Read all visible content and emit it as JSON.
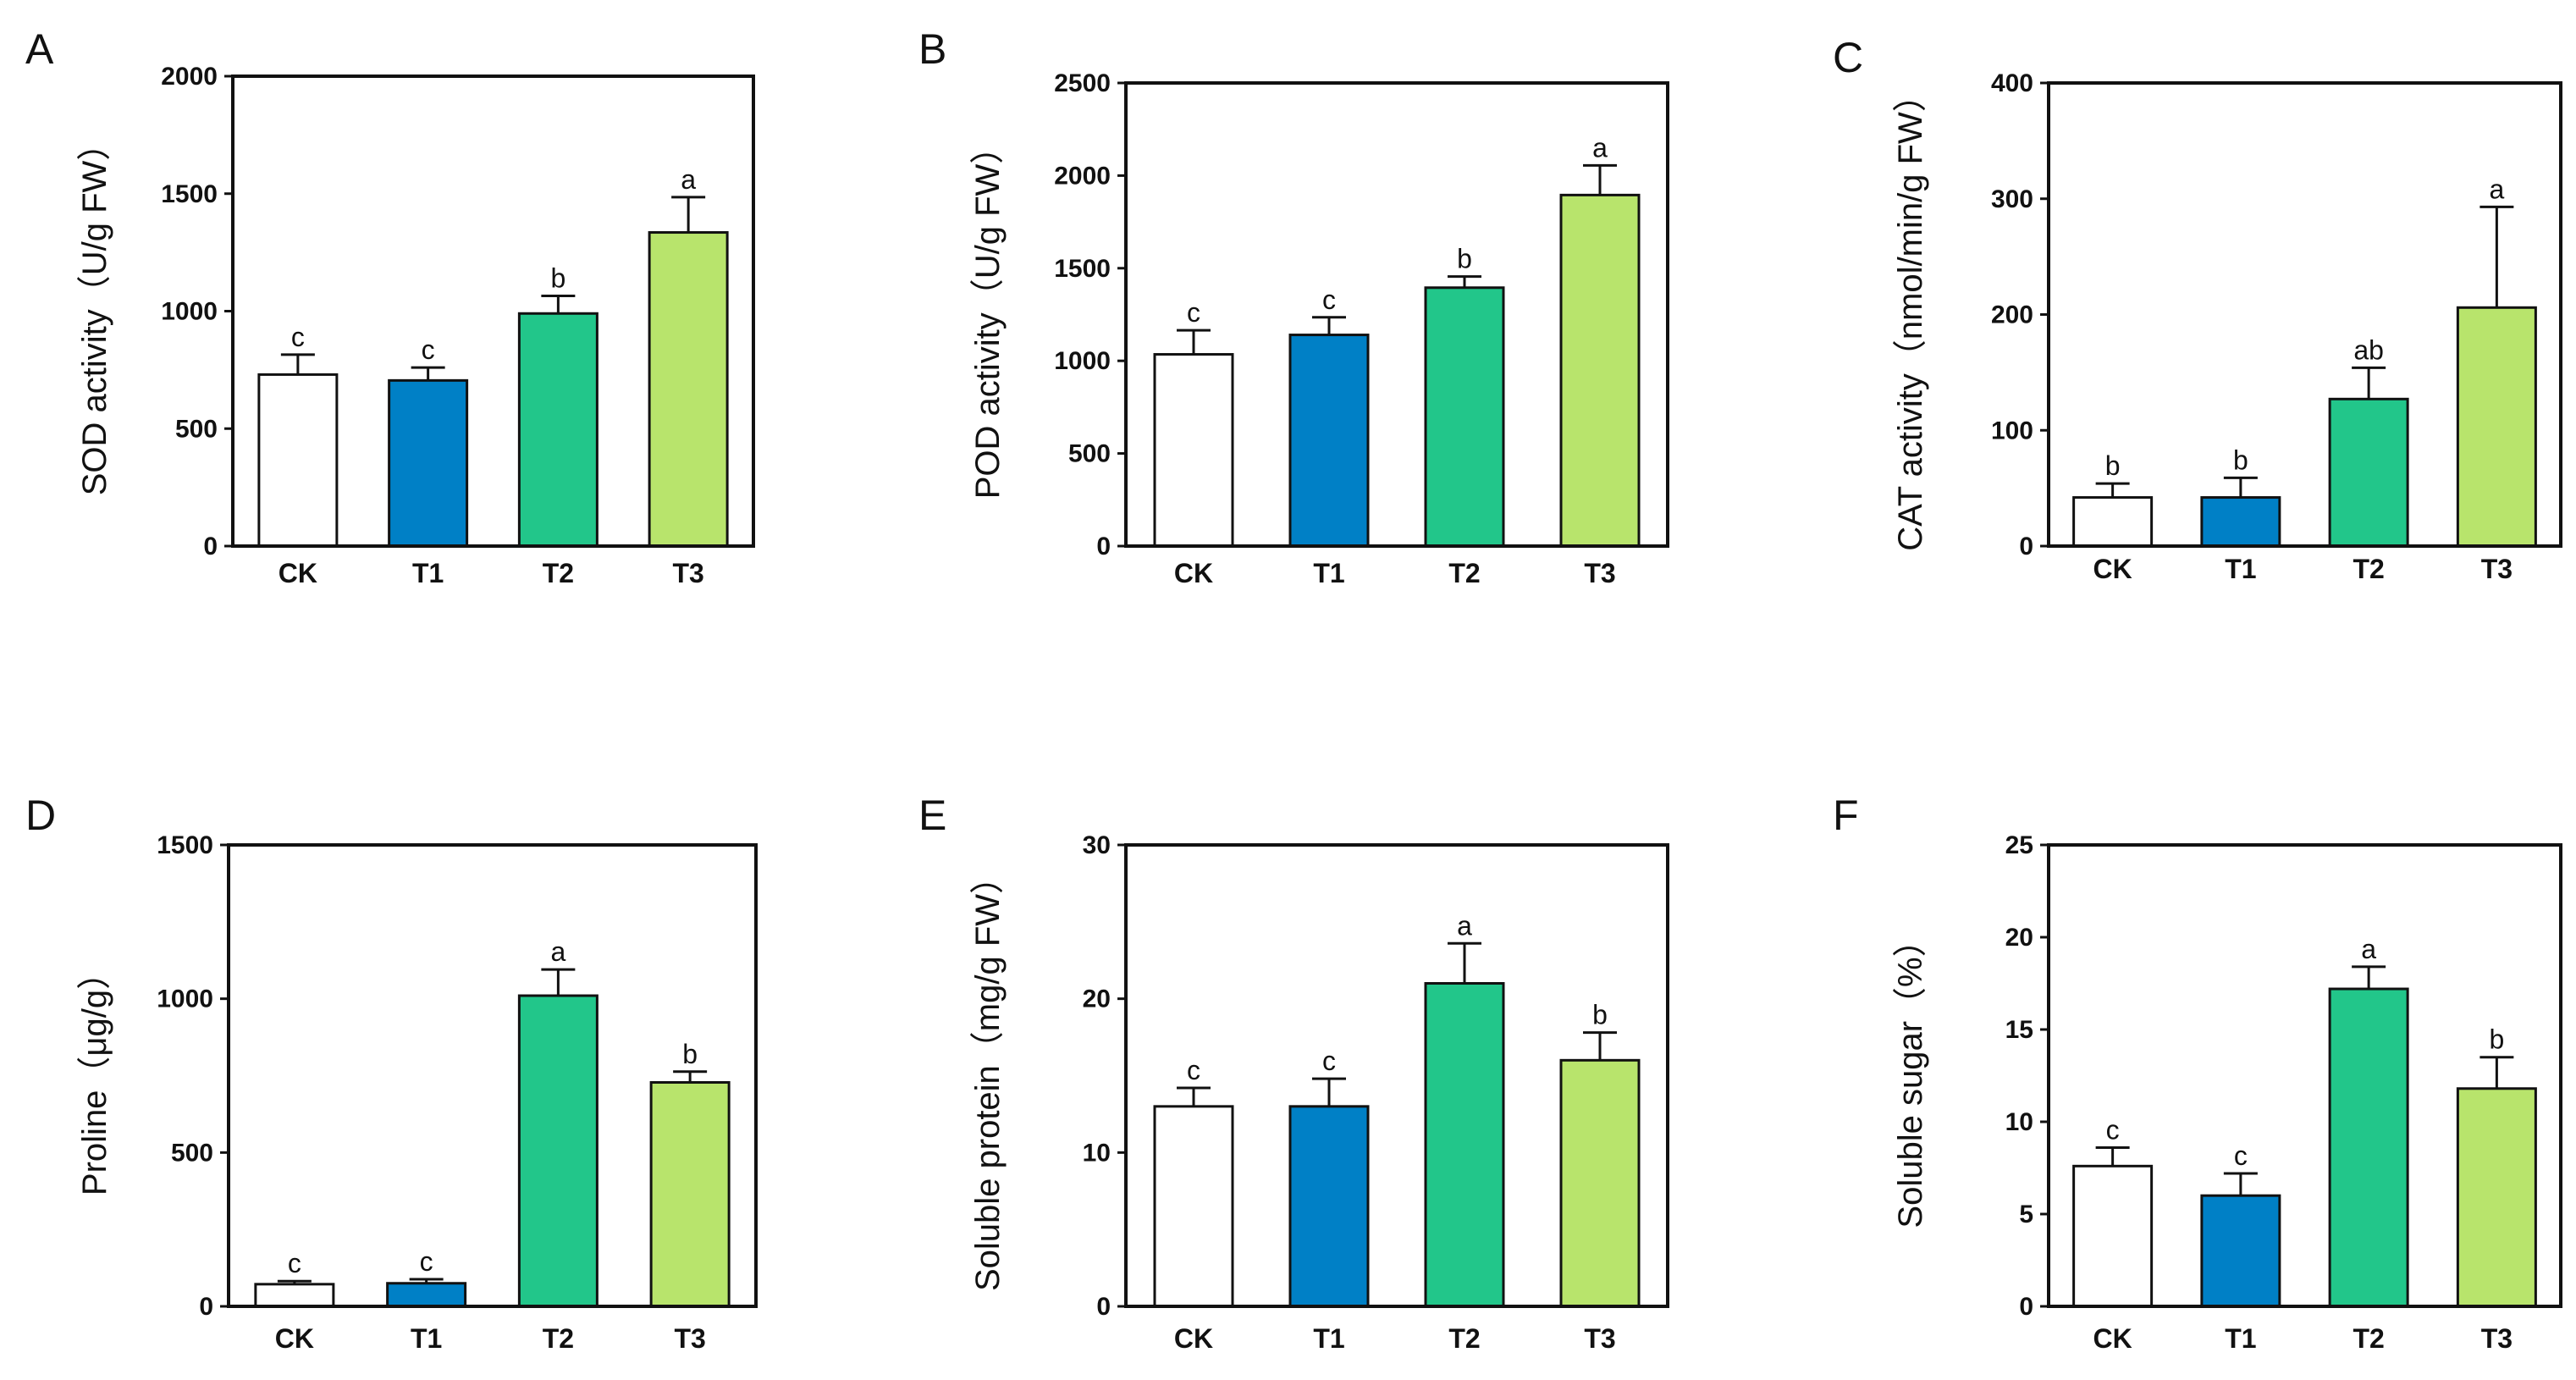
{
  "colors": {
    "CK": "#ffffff",
    "T1": "#0080c6",
    "T2": "#22c68a",
    "T3": "#b8e46c",
    "outline": "#111111"
  },
  "chart_data": [
    {
      "panel": "A",
      "type": "bar",
      "ylabel": "SOD activity（U/g FW）",
      "xlabel": "",
      "categories": [
        "CK",
        "T1",
        "T2",
        "T3"
      ],
      "values": [
        730,
        705,
        990,
        1335
      ],
      "errors": [
        85,
        55,
        75,
        150
      ],
      "significance": [
        "c",
        "c",
        "b",
        "a"
      ],
      "ylim": [
        0,
        2000
      ],
      "yticks": [
        0,
        500,
        1000,
        1500,
        2000
      ]
    },
    {
      "panel": "B",
      "type": "bar",
      "ylabel": "POD activity（U/g FW）",
      "xlabel": "",
      "categories": [
        "CK",
        "T1",
        "T2",
        "T3"
      ],
      "values": [
        1035,
        1140,
        1395,
        1895
      ],
      "errors": [
        130,
        95,
        60,
        160
      ],
      "significance": [
        "c",
        "c",
        "b",
        "a"
      ],
      "ylim": [
        0,
        2500
      ],
      "yticks": [
        0,
        500,
        1000,
        1500,
        2000,
        2500
      ]
    },
    {
      "panel": "C",
      "type": "bar",
      "ylabel": "CAT activity（nmol/min/g FW）",
      "xlabel": "",
      "categories": [
        "CK",
        "T1",
        "T2",
        "T3"
      ],
      "values": [
        42,
        42,
        127,
        206
      ],
      "errors": [
        12,
        17,
        27,
        87
      ],
      "significance": [
        "b",
        "b",
        "ab",
        "a"
      ],
      "ylim": [
        0,
        400
      ],
      "yticks": [
        0,
        100,
        200,
        300,
        400
      ]
    },
    {
      "panel": "D",
      "type": "bar",
      "ylabel": "Proline（μg/g）",
      "xlabel": "",
      "categories": [
        "CK",
        "T1",
        "T2",
        "T3"
      ],
      "values": [
        72,
        75,
        1010,
        728
      ],
      "errors": [
        10,
        13,
        85,
        35
      ],
      "significance": [
        "c",
        "c",
        "a",
        "b"
      ],
      "ylim": [
        0,
        1500
      ],
      "yticks": [
        0,
        500,
        1000,
        1500
      ]
    },
    {
      "panel": "E",
      "type": "bar",
      "ylabel": "Soluble protein（mg/g FW）",
      "xlabel": "",
      "categories": [
        "CK",
        "T1",
        "T2",
        "T3"
      ],
      "values": [
        13,
        13,
        21,
        16
      ],
      "errors": [
        1.2,
        1.8,
        2.6,
        1.8
      ],
      "significance": [
        "c",
        "c",
        "a",
        "b"
      ],
      "ylim": [
        0,
        30
      ],
      "yticks": [
        0,
        10,
        20,
        30
      ]
    },
    {
      "panel": "F",
      "type": "bar",
      "ylabel": "Soluble sugar（%）",
      "xlabel": "",
      "categories": [
        "CK",
        "T1",
        "T2",
        "T3"
      ],
      "values": [
        7.6,
        6,
        17.2,
        11.8
      ],
      "errors": [
        1.0,
        1.2,
        1.2,
        1.7
      ],
      "significance": [
        "c",
        "c",
        "a",
        "b"
      ],
      "ylim": [
        0,
        25
      ],
      "yticks": [
        0,
        5,
        10,
        15,
        20,
        25
      ]
    }
  ]
}
